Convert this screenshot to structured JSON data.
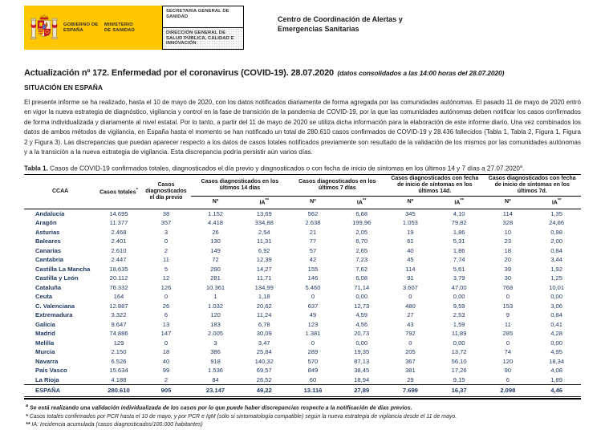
{
  "header": {
    "gobierno": "GOBIERNO DE ESPAÑA",
    "ministerio": "MINISTERIO DE SANIDAD",
    "secretaria": "SECRETARIA GENERAL DE SANIDAD",
    "direccion": "DIRECCIÓN GENERAL DE SALUD PÚBLICA, CALIDAD E INNOVACIÓN",
    "centro": "Centro de Coordinación de Alertas y Emergencias Sanitarias"
  },
  "title": {
    "main": "Actualización nº 172. Enfermedad por el coronavirus (COVID-19). 28.07.2020",
    "note": "(datos consolidados a las 14:00 horas del 28.07.2020)",
    "section": "SITUACIÓN EN ESPAÑA"
  },
  "intro_paragraph": "El presente informe se ha realizado, hasta el 10 de mayo de 2020, con los datos notificados diariamente de forma agregada por las comunidades autónomas. El pasado 11 de mayo de 2020 entró en vigor la nueva estrategia de diagnóstico, vigilancia y control en la fase de transición de la pandemia de COVID-19, por la que las comunidades autónomas deben notificar los casos confirmados de forma individualizada y diariamente al nivel estatal. Por lo tanto, a partir del 11 de mayo de 2020 se utiliza dicha información para la elaboración de este informe diario. Una vez combinados los datos de ambos métodos de vigilancia, en España hasta el momento se han notificado un total de 280.610 casos confirmados de COVID-19 y 28.436 fallecidos (Tabla 1, Tabla 2, Figura 1, Figura 2 y Figura 3). Las discrepancias que puedan aparecer respecto a los datos de casos totales notificados previamente son resultado de la validación de los mismos por las comunidades autónomas y a la transición a la nueva estrategia de vigilancia. Esta discrepancia podría persistir aún varios días.",
  "table": {
    "caption_bold": "Tabla 1.",
    "caption_text": " Casos de COVID-19 confirmados totales, diagnosticados el día previo y diagnosticados o con fecha de inicio de síntomas en los últimos 14 y 7 días a 27.07.2020",
    "caption_sup": "a",
    "caption_period": ".",
    "headers": {
      "ccaa": "CCAA",
      "totales": "Casos totales",
      "totales_sup": "*",
      "previo": "Casos diagnosticados el día previo",
      "group_14": "Casos diagnosticados en los últimos 14 días",
      "group_7": "Casos diagnosticados en los últimos 7 días",
      "group_sint14": "Casos diagnosticados con fecha de inicio de síntomas en los últimos 14d.",
      "group_sint7": "Casos diagnosticados con fecha de inicio de síntomas en los últimos 7d.",
      "n": "Nº",
      "ia": "IA",
      "ia_sup": "**"
    },
    "rows": [
      {
        "name": "Andalucía",
        "values": [
          "14.695",
          "38",
          "1.152",
          "13,69",
          "562",
          "6,68",
          "345",
          "4,10",
          "114",
          "1,35"
        ]
      },
      {
        "name": "Aragón",
        "values": [
          "11.377",
          "357",
          "4.418",
          "334,88",
          "2.638",
          "199,96",
          "1.053",
          "79,82",
          "328",
          "24,86"
        ]
      },
      {
        "name": "Asturias",
        "values": [
          "2.468",
          "3",
          "26",
          "2,54",
          "21",
          "2,05",
          "19",
          "1,86",
          "10",
          "0,98"
        ]
      },
      {
        "name": "Baleares",
        "values": [
          "2.401",
          "0",
          "130",
          "11,31",
          "77",
          "6,70",
          "61",
          "5,31",
          "23",
          "2,00"
        ]
      },
      {
        "name": "Canarias",
        "values": [
          "2.610",
          "2",
          "149",
          "6,92",
          "57",
          "2,65",
          "40",
          "1,86",
          "18",
          "0,84"
        ]
      },
      {
        "name": "Cantabria",
        "values": [
          "2.447",
          "11",
          "72",
          "12,39",
          "42",
          "7,23",
          "45",
          "7,74",
          "20",
          "3,44"
        ]
      },
      {
        "name": "Castilla La Mancha",
        "values": [
          "18.635",
          "5",
          "290",
          "14,27",
          "155",
          "7,62",
          "114",
          "5,61",
          "39",
          "1,92"
        ]
      },
      {
        "name": "Castilla y León",
        "values": [
          "20.112",
          "12",
          "281",
          "11,71",
          "146",
          "6,08",
          "91",
          "3,79",
          "30",
          "1,25"
        ]
      },
      {
        "name": "Cataluña",
        "values": [
          "76.332",
          "126",
          "10.361",
          "134,99",
          "5.460",
          "71,14",
          "3.607",
          "47,00",
          "768",
          "10,01"
        ]
      },
      {
        "name": "Ceuta",
        "values": [
          "164",
          "0",
          "1",
          "1,18",
          "0",
          "0,00",
          "0",
          "0,00",
          "0",
          "0,00"
        ]
      },
      {
        "name": "C. Valenciana",
        "values": [
          "12.887",
          "26",
          "1.032",
          "20,62",
          "637",
          "12,73",
          "480",
          "9,59",
          "153",
          "3,06"
        ]
      },
      {
        "name": "Extremadura",
        "values": [
          "3.322",
          "6",
          "120",
          "11,24",
          "49",
          "4,59",
          "27",
          "2,53",
          "9",
          "0,84"
        ]
      },
      {
        "name": "Galicia",
        "values": [
          "9.647",
          "13",
          "183",
          "6,78",
          "123",
          "4,56",
          "43",
          "1,59",
          "11",
          "0,41"
        ]
      },
      {
        "name": "Madrid",
        "values": [
          "74.886",
          "147",
          "2.005",
          "30,09",
          "1.381",
          "20,73",
          "792",
          "11,89",
          "285",
          "4,28"
        ]
      },
      {
        "name": "Melilla",
        "values": [
          "129",
          "0",
          "3",
          "3,47",
          "0",
          "0,00",
          "0",
          "0,00",
          "0",
          "0,00"
        ]
      },
      {
        "name": "Murcia",
        "values": [
          "2.150",
          "18",
          "386",
          "25,84",
          "289",
          "19,35",
          "205",
          "13,72",
          "74",
          "4,95"
        ]
      },
      {
        "name": "Navarra",
        "values": [
          "6.526",
          "40",
          "918",
          "140,32",
          "570",
          "87,13",
          "367",
          "56,10",
          "120",
          "18,34"
        ]
      },
      {
        "name": "País Vasco",
        "values": [
          "15.634",
          "99",
          "1.536",
          "69,57",
          "849",
          "38,45",
          "381",
          "17,26",
          "90",
          "4,08"
        ]
      },
      {
        "name": "La Rioja",
        "values": [
          "4.188",
          "2",
          "84",
          "26,52",
          "60",
          "18,94",
          "29",
          "9,15",
          "6",
          "1,89"
        ]
      }
    ],
    "total": {
      "name": "ESPAÑA",
      "values": [
        "280.610",
        "905",
        "23.147",
        "49,22",
        "13.116",
        "27,89",
        "7.699",
        "16,37",
        "2.098",
        "4,46"
      ]
    }
  },
  "footnotes": [
    {
      "marker": "a",
      "sup": true,
      "bold": true,
      "text": "Se está realizando una validación individualizada de los casos por lo que puede haber discrepancias respecto a la notificación de días previos."
    },
    {
      "marker": "*",
      "sup": false,
      "bold": false,
      "text": "Casos totales confirmados por PCR hasta el 10 de mayo, y por PCR e IgM (sólo si sintomatología compatible) según la nueva estrategia de vigilancia desde el 11 de mayo."
    },
    {
      "marker": "**",
      "sup": false,
      "bold": false,
      "text": "IA: Incidencia acumulada (casos diagnosticados/100.000 habitantes)"
    }
  ],
  "colors": {
    "logo_yellow": "#FFC700",
    "table_text": "#1F3864"
  }
}
